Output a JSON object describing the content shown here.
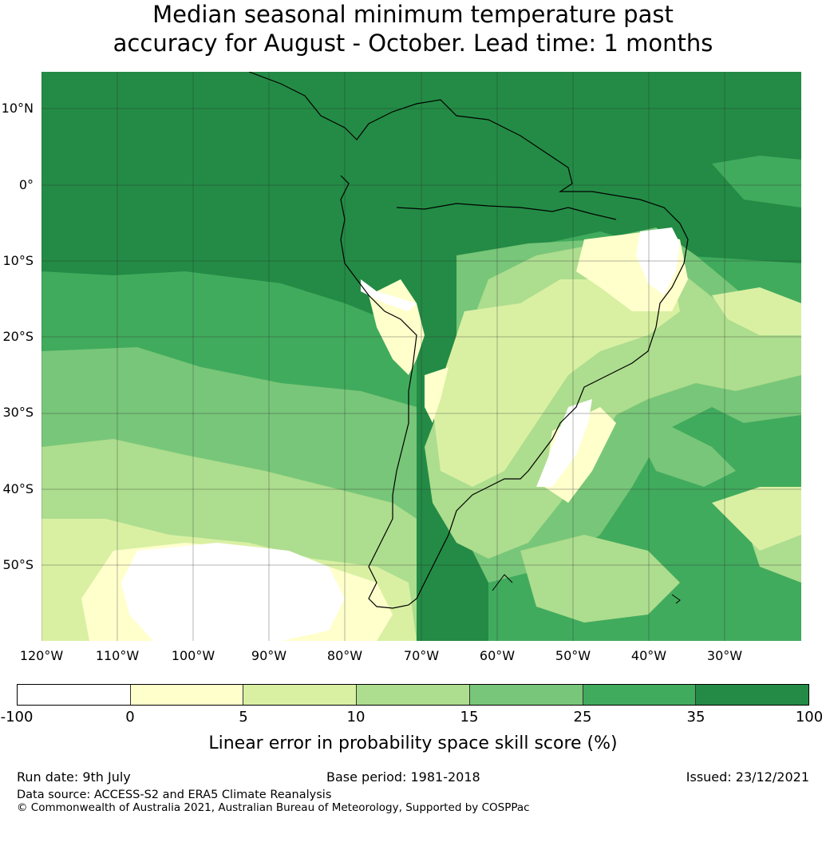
{
  "title_line1": "Median seasonal minimum temperature past",
  "title_line2": "accuracy for August - October. Lead time: 1 months",
  "map": {
    "lat_labels": [
      "10°N",
      "0°",
      "10°S",
      "20°S",
      "30°S",
      "40°S",
      "50°S"
    ],
    "lon_labels": [
      "120°W",
      "110°W",
      "100°W",
      "90°W",
      "80°W",
      "70°W",
      "60°W",
      "50°W",
      "40°W",
      "30°W"
    ]
  },
  "colorbar": {
    "colors": [
      "#ffffff",
      "#ffffcc",
      "#d9f0a3",
      "#addd8e",
      "#78c679",
      "#41ab5d",
      "#238b45"
    ],
    "ticks": [
      "-100",
      "0",
      "5",
      "10",
      "15",
      "25",
      "35",
      "100"
    ],
    "label": "Linear error in probability space skill score (%)"
  },
  "footer": {
    "run_date": "Run date: 9th July",
    "base_period": "Base period: 1981-2018",
    "issued": "Issued: 23/12/2021",
    "data_source": "Data source: ACCESS-S2 and ERA5 Climate Reanalysis",
    "copyright": "© Commonwealth of Australia 2021, Australian Bureau of Meteorology, Supported by COSPPac"
  }
}
